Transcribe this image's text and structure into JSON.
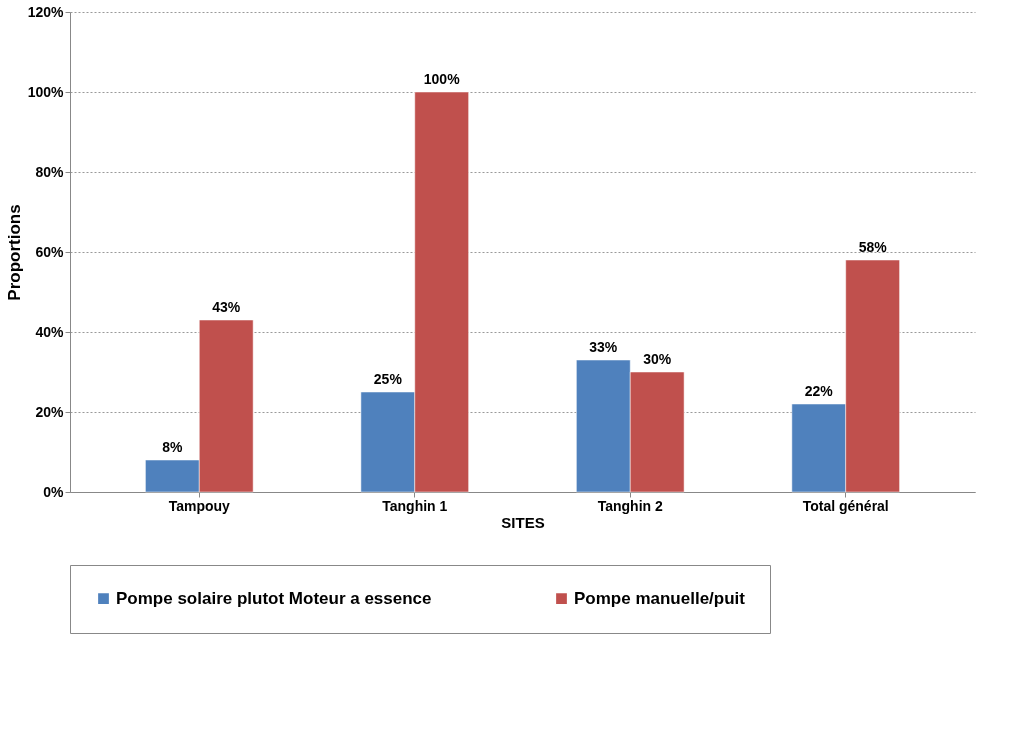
{
  "chart_data": {
    "type": "bar",
    "xlabel": "SITES",
    "ylabel": "Proportions",
    "categories": [
      "Tampouy",
      "Tanghin 1",
      "Tanghin 2",
      "Total général"
    ],
    "series": [
      {
        "name": "Pompe solaire plutot Moteur a essence",
        "color": "#4f81bd",
        "values": [
          8,
          25,
          33,
          22
        ],
        "value_labels": [
          "8%",
          "25%",
          "33%",
          "22%"
        ]
      },
      {
        "name": "Pompe manuelle/puit",
        "color": "#c0504d",
        "values": [
          43,
          100,
          30,
          58
        ],
        "value_labels": [
          "43%",
          "100%",
          "30%",
          "58%"
        ]
      }
    ],
    "ylim": [
      0,
      120
    ],
    "yticks": [
      {
        "value": 0,
        "label": "0%"
      },
      {
        "value": 20,
        "label": "20%"
      },
      {
        "value": 40,
        "label": "40%"
      },
      {
        "value": 60,
        "label": "60%"
      },
      {
        "value": 80,
        "label": "80%"
      },
      {
        "value": 100,
        "label": "100%"
      },
      {
        "value": 120,
        "label": "120%"
      }
    ],
    "grid": "y",
    "legend": "bottom"
  }
}
